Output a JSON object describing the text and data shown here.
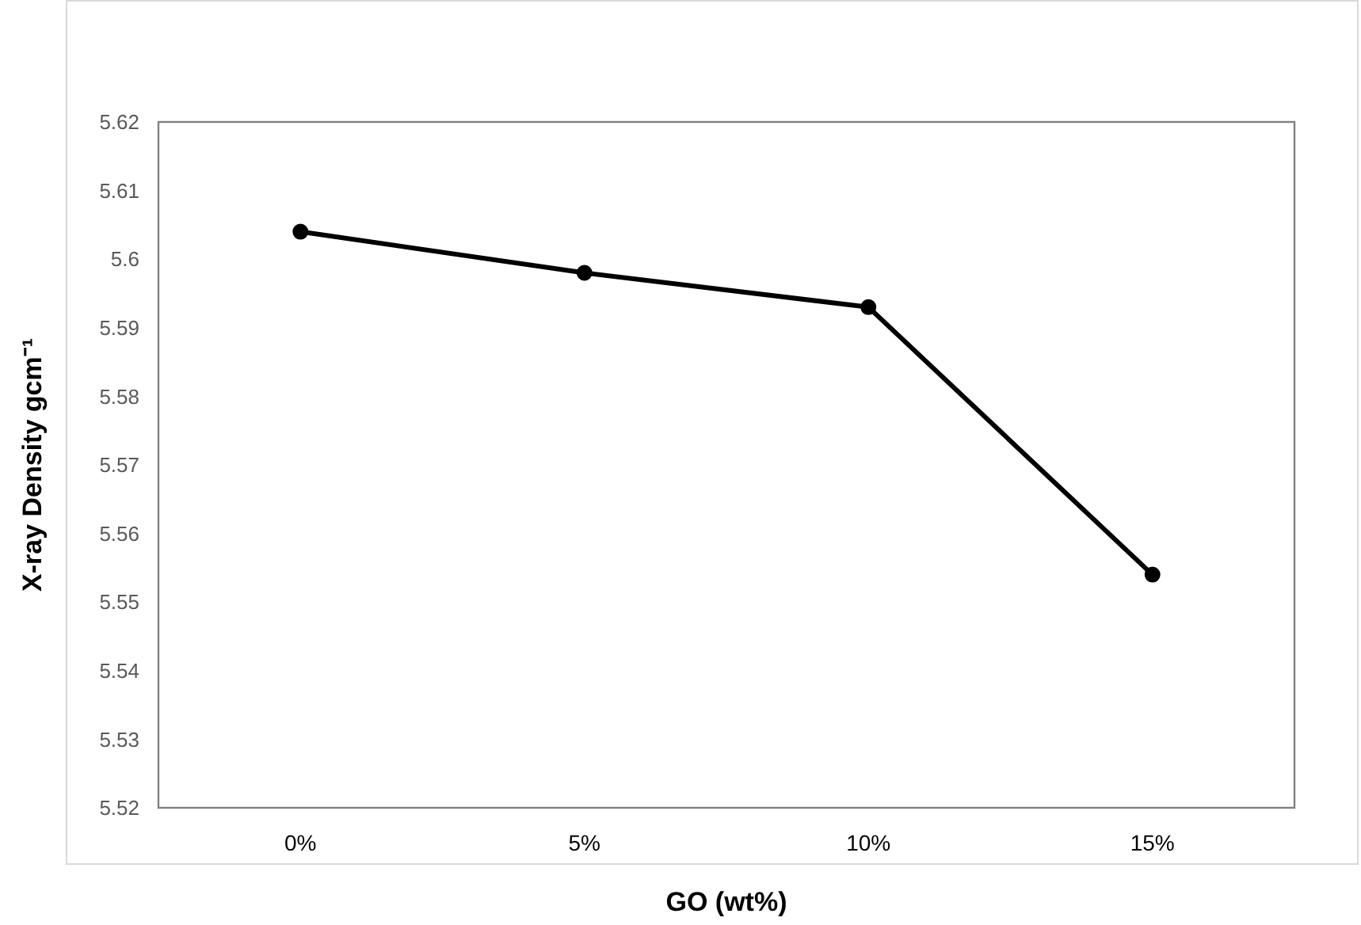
{
  "chart_data": {
    "type": "line",
    "xlabel": "GO (wt%)",
    "ylabel": "X-ray Density gcm⁻¹",
    "categories": [
      "0%",
      "5%",
      "10%",
      "15%"
    ],
    "series": [
      {
        "color": "#000000",
        "values": [
          5.604,
          5.598,
          5.593,
          5.554
        ]
      }
    ],
    "ylim": [
      5.52,
      5.62
    ],
    "yticks": [
      5.52,
      5.53,
      5.54,
      5.55,
      5.56,
      5.57,
      5.58,
      5.59,
      5.6,
      5.61,
      5.62
    ],
    "grid": false,
    "marker": "circle",
    "line_style": "solid"
  }
}
